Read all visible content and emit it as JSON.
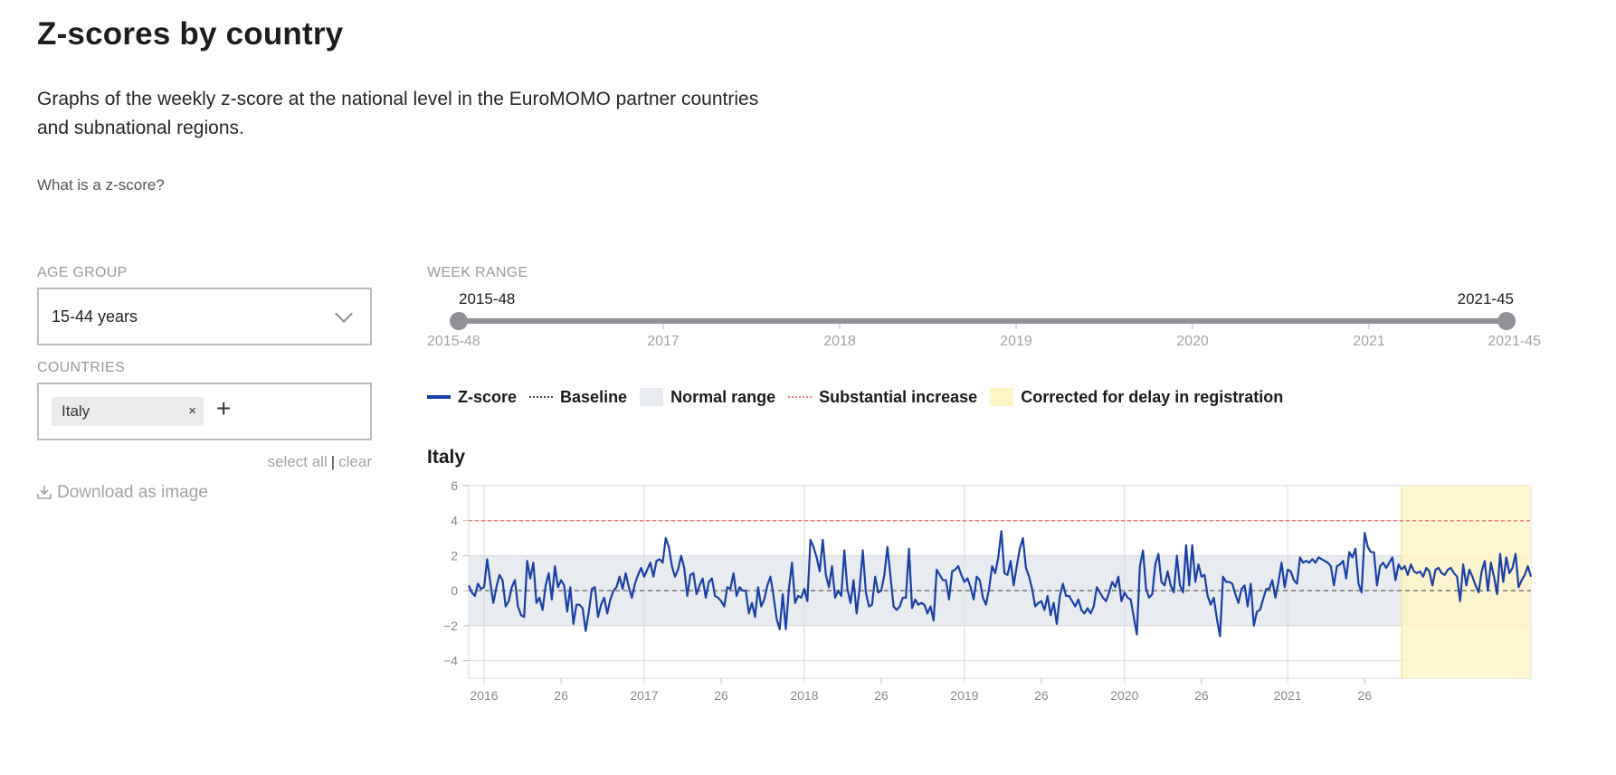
{
  "page": {
    "title": "Z-scores by country",
    "intro": "Graphs of the weekly z-score at the national level in the EuroMOMO partner countries and subnational regions.",
    "zscore_link": "What is a z-score?"
  },
  "filters": {
    "age_group_label": "AGE GROUP",
    "age_group_value": "15-44 years",
    "countries_label": "COUNTRIES",
    "countries": [
      {
        "label": "Italy",
        "remove": "×"
      }
    ],
    "add_symbol": "+",
    "select_all": "select all",
    "separator": "|",
    "clear": "clear",
    "download": "Download as image"
  },
  "week_range": {
    "label": "WEEK RANGE",
    "start": "2015-48",
    "end": "2021-45",
    "ticks": [
      "2015-48",
      "2017",
      "2018",
      "2019",
      "2020",
      "2021",
      "2021-45"
    ],
    "colors": {
      "track": "#8f9197",
      "handle": "#8f9197"
    }
  },
  "legend": [
    {
      "label": "Z-score",
      "swatch": "line"
    },
    {
      "label": "Baseline",
      "swatch": "dotted"
    },
    {
      "label": "Normal range",
      "swatch": "band"
    },
    {
      "label": "Substantial increase",
      "swatch": "red-dotted"
    },
    {
      "label": "Corrected for delay in registration",
      "swatch": "yellow"
    }
  ],
  "chart_data": {
    "type": "line",
    "title": "Italy",
    "xlabel": "",
    "ylabel": "",
    "ylim": [
      -5,
      6
    ],
    "yticks": [
      6,
      4,
      2,
      0,
      -2,
      -4
    ],
    "xticks": [
      {
        "label": "2016",
        "week": 5
      },
      {
        "label": "26",
        "week": 30
      },
      {
        "label": "2017",
        "week": 57
      },
      {
        "label": "26",
        "week": 82
      },
      {
        "label": "2018",
        "week": 109
      },
      {
        "label": "26",
        "week": 134
      },
      {
        "label": "2019",
        "week": 161
      },
      {
        "label": "26",
        "week": 186
      },
      {
        "label": "2020",
        "week": 213
      },
      {
        "label": "26",
        "week": 238
      },
      {
        "label": "2021",
        "week": 266
      },
      {
        "label": "26",
        "week": 291
      }
    ],
    "baseline": 0,
    "normal_range": [
      -2,
      2
    ],
    "substantial_increase": 4,
    "corrected_from_week": 303,
    "colors": {
      "line": "#1a3fa6",
      "band": "#e8ecf1",
      "baseline": "#777777",
      "threshold": "#f07a7a",
      "correction": "#fff6c8",
      "grid": "#d9d9d9"
    },
    "series": [
      {
        "values": [
          0.3,
          -0.1,
          -0.3,
          0.4,
          0.1,
          0.2,
          1.8,
          0.5,
          -0.7,
          0.2,
          0.9,
          0.6,
          -0.9,
          -0.6,
          0.2,
          0.6,
          -0.9,
          -1.4,
          -1.5,
          1.7,
          0.7,
          1.6,
          -0.7,
          -0.4,
          -1.1,
          0.3,
          1.0,
          -0.5,
          1.4,
          0.2,
          0.6,
          0.3,
          -1.2,
          0.2,
          -1.9,
          -0.8,
          -0.8,
          -1.0,
          -2.3,
          -1.2,
          0.1,
          0.2,
          -1.5,
          -0.8,
          -0.4,
          -1.3,
          -0.5,
          0.0,
          0.2,
          0.8,
          0.1,
          1.0,
          0.2,
          -0.4,
          0.4,
          0.9,
          1.3,
          0.8,
          1.2,
          1.6,
          0.8,
          1.7,
          1.8,
          1.6,
          3.0,
          2.5,
          1.4,
          0.8,
          1.2,
          2.0,
          1.3,
          -0.3,
          0.9,
          1.0,
          -0.2,
          0.3,
          0.7,
          -0.4,
          0.5,
          0.7,
          -0.3,
          -0.4,
          -0.6,
          -0.9,
          0.2,
          0.1,
          1.0,
          -0.3,
          0.2,
          0.0,
          0.0,
          -1.3,
          -0.7,
          -1.5,
          0.2,
          -0.9,
          -0.5,
          0.3,
          0.8,
          -0.3,
          -1.6,
          -2.2,
          -0.2,
          -2.2,
          0.1,
          1.6,
          -0.7,
          -0.3,
          -0.4,
          0.1,
          -0.6,
          2.9,
          2.5,
          1.9,
          1.1,
          2.9,
          0.9,
          0.2,
          1.4,
          -0.4,
          0.0,
          -0.3,
          2.3,
          0.1,
          -0.7,
          0.6,
          -1.3,
          0.2,
          2.3,
          -0.1,
          -0.9,
          -0.8,
          0.8,
          -0.1,
          0.0,
          0.9,
          2.5,
          0.8,
          -0.9,
          -1.1,
          -0.9,
          -0.4,
          -0.4,
          2.4,
          -1.0,
          -0.5,
          -0.8,
          -0.7,
          -0.8,
          -1.3,
          -0.9,
          -1.7,
          1.2,
          0.9,
          0.6,
          0.6,
          -0.5,
          1.1,
          1.2,
          1.4,
          0.9,
          0.5,
          0.7,
          0.2,
          -0.5,
          0.8,
          0.6,
          -0.4,
          -0.8,
          0.1,
          1.4,
          1.0,
          1.9,
          3.4,
          1.0,
          0.9,
          1.7,
          0.3,
          1.4,
          2.4,
          3.0,
          1.3,
          0.8,
          0.1,
          -0.9,
          -0.7,
          -0.6,
          -1.1,
          -0.3,
          -1.4,
          -0.7,
          -1.9,
          -0.3,
          0.4,
          -0.3,
          -0.3,
          -0.6,
          -0.9,
          -0.5,
          -1.1,
          -1.3,
          -1.0,
          -1.3,
          -0.9,
          0.2,
          -0.1,
          -0.4,
          -0.6,
          -0.1,
          0.5,
          0.2,
          0.8,
          -0.6,
          -0.1,
          -0.4,
          -0.5,
          -1.5,
          -2.5,
          1.4,
          2.3,
          0.1,
          -0.4,
          -0.2,
          1.5,
          2.1,
          0.5,
          0.3,
          1.1,
          0.3,
          -0.1,
          2.0,
          0.3,
          -0.1,
          2.6,
          0.3,
          2.6,
          0.5,
          1.5,
          0.8,
          0.9,
          -0.3,
          -0.8,
          -0.4,
          -1.6,
          -2.6,
          0.8,
          0.5,
          0.5,
          0.4,
          -0.2,
          -0.7,
          0.1,
          0.3,
          -0.9,
          0.4,
          -2.0,
          -1.2,
          -1.1,
          -0.5,
          0.1,
          0.1,
          0.6,
          -0.4,
          0.5,
          1.6,
          0.2,
          1.2,
          1.1,
          0.6,
          0.4,
          1.9,
          1.6,
          1.7,
          1.6,
          1.8,
          1.6,
          1.9,
          1.8,
          1.7,
          1.6,
          1.4,
          0.3,
          1.4,
          1.5,
          1.7,
          0.7,
          2.2,
          1.9,
          2.4,
          0.4,
          -0.1,
          3.3,
          2.5,
          2.2,
          2.2,
          0.3,
          1.4,
          1.6,
          1.3,
          1.6,
          1.9,
          0.6,
          1.5,
          1.2,
          1.4,
          0.9,
          1.5,
          1.1,
          1.0,
          1.1,
          0.8,
          1.3,
          1.1,
          0.3,
          1.2,
          1.3,
          1.0,
          0.9,
          1.2,
          1.3,
          1.0,
          0.8,
          -0.6,
          1.5,
          0.3,
          1.2,
          0.8,
          0.3,
          -0.1,
          1.1,
          1.7,
          0.0,
          1.6,
          0.8,
          -0.2,
          2.1,
          0.5,
          1.9,
          1.0,
          1.3,
          2.1,
          0.2,
          0.6,
          0.9,
          1.4,
          0.8
        ]
      }
    ]
  }
}
